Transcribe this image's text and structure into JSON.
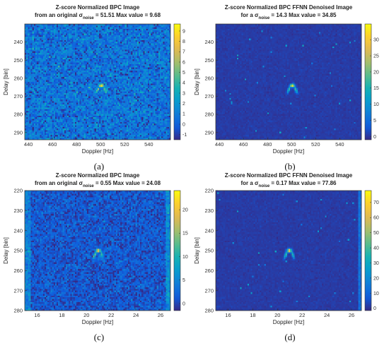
{
  "chart_data": [
    {
      "type": "heatmap",
      "id": "a",
      "title_line1": "Z-score Normalized BPC Image",
      "title_line2_prefix": "from an original σ",
      "title_line2_sub": "noise",
      "title_line2_suffix": " = 51.51 Max value = 9.68",
      "xlabel": "Doppler [Hz]",
      "ylabel": "Delay [bin]",
      "caption": "(a)",
      "xlim": [
        437,
        558
      ],
      "ylim": [
        294,
        230
      ],
      "xticks": [
        440,
        460,
        480,
        500,
        520,
        540
      ],
      "yticks": [
        240,
        250,
        260,
        270,
        280,
        290
      ],
      "colorbar": {
        "min": -1.5,
        "max": 9.68,
        "ticks": [
          -1,
          0,
          1,
          2,
          3,
          4,
          5,
          6,
          7,
          8,
          9
        ]
      },
      "background": {
        "level": 0.6,
        "noise": 1.0
      },
      "target": {
        "x": 500,
        "y": 264,
        "peak": 9.68
      },
      "extra": "none"
    },
    {
      "type": "heatmap",
      "id": "b",
      "title_line1": "Z-score Normalized BPC FFNN Denoised Image",
      "title_line2_prefix": "for a σ",
      "title_line2_sub": "noise",
      "title_line2_suffix": " = 14.3 Max value = 34.85",
      "xlabel": "Doppler [Hz]",
      "ylabel": "Delay [bin]",
      "caption": "(b)",
      "xlim": [
        437,
        558
      ],
      "ylim": [
        294,
        230
      ],
      "xticks": [
        440,
        460,
        480,
        500,
        520,
        540
      ],
      "yticks": [
        240,
        250,
        260,
        270,
        280,
        290
      ],
      "colorbar": {
        "min": -1,
        "max": 34.85,
        "ticks": [
          0,
          5,
          10,
          15,
          20,
          25,
          30
        ]
      },
      "background": {
        "level": 0.4,
        "noise": 0.6
      },
      "target": {
        "x": 500,
        "y": 264,
        "peak": 34.85
      },
      "extra": "none"
    },
    {
      "type": "heatmap",
      "id": "c",
      "title_line1": "Z-score Normalized BPC Image",
      "title_line2_prefix": "from an original σ",
      "title_line2_sub": "noise",
      "title_line2_suffix": " = 0.55 Max value = 24.08",
      "xlabel": "Doppler [Hz]",
      "ylabel": "Delay [bin]",
      "caption": "(c)",
      "xlim": [
        15,
        26.8
      ],
      "ylim": [
        280,
        220
      ],
      "xticks": [
        16,
        18,
        20,
        22,
        24,
        26
      ],
      "yticks": [
        220,
        230,
        240,
        250,
        260,
        270,
        280
      ],
      "colorbar": {
        "min": -1.5,
        "max": 24.08,
        "ticks": [
          0,
          5,
          10,
          15,
          20
        ]
      },
      "background": {
        "level": 1.2,
        "noise": 1.6
      },
      "target": {
        "x": 20.9,
        "y": 250,
        "peak": 24.08
      },
      "extra": "edges"
    },
    {
      "type": "heatmap",
      "id": "d",
      "title_line1": "Z-score Normalized BPC FFNN Denoised Image",
      "title_line2_prefix": "for a σ",
      "title_line2_sub": "noise",
      "title_line2_suffix": " = 0.17 Max value = 77.86",
      "xlabel": "Doppler [Hz]",
      "ylabel": "Delay [bin]",
      "caption": "(d)",
      "xlim": [
        15,
        26.8
      ],
      "ylim": [
        280,
        220
      ],
      "xticks": [
        16,
        18,
        20,
        22,
        24,
        26
      ],
      "yticks": [
        220,
        230,
        240,
        250,
        260,
        270,
        280
      ],
      "colorbar": {
        "min": -1.5,
        "max": 77.86,
        "ticks": [
          0,
          10,
          20,
          30,
          40,
          50,
          60,
          70
        ]
      },
      "background": {
        "level": 1.5,
        "noise": 1.3
      },
      "target": {
        "x": 20.9,
        "y": 250,
        "peak": 77.86
      },
      "extra": "right-edge"
    }
  ]
}
